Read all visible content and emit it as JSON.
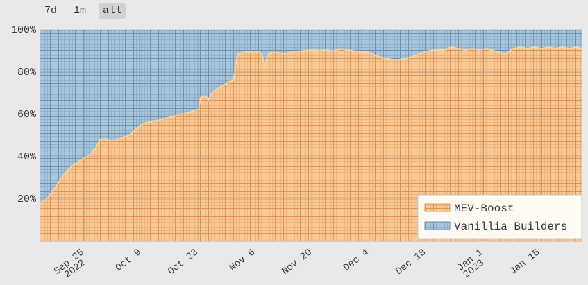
{
  "range_selector": {
    "buttons": [
      {
        "label": "7d",
        "active": false
      },
      {
        "label": "1m",
        "active": false
      },
      {
        "label": "all",
        "active": true
      }
    ],
    "active_background": "#d2d2d2"
  },
  "legend": {
    "position": "bottom-right",
    "background": "#fdfbf4",
    "border": "#cfccc0",
    "items": [
      {
        "label": "MEV-Boost",
        "swatch": "orange-hatch"
      },
      {
        "label": "Vanillia Builders",
        "swatch": "blue-hatch"
      }
    ]
  },
  "chart_data": {
    "type": "area",
    "mode": "100%-stacked",
    "title": "",
    "xlabel": "",
    "ylabel": "",
    "grid": true,
    "x_unit": "days since 2022-09-14",
    "x_range": [
      0,
      133.4
    ],
    "ylim": [
      0,
      100
    ],
    "yticks": [
      {
        "value": 100,
        "label": "100%"
      },
      {
        "value": 80,
        "label": "80%"
      },
      {
        "value": 60,
        "label": "60%"
      },
      {
        "value": 40,
        "label": "40%"
      },
      {
        "value": 20,
        "label": "20%"
      }
    ],
    "xticks": [
      {
        "day": 11,
        "label": "Sep 25",
        "sublabel": "2022"
      },
      {
        "day": 25,
        "label": "Oct 9"
      },
      {
        "day": 39,
        "label": "Oct 23"
      },
      {
        "day": 53,
        "label": "Nov 6"
      },
      {
        "day": 67,
        "label": "Nov 20"
      },
      {
        "day": 81,
        "label": "Dec 4"
      },
      {
        "day": 95,
        "label": "Dec 18"
      },
      {
        "day": 109,
        "label": "Jan 1",
        "sublabel": "2023"
      },
      {
        "day": 123,
        "label": "Jan 15"
      }
    ],
    "series": [
      {
        "name": "MEV-Boost",
        "unit": "% of slots",
        "points": [
          [
            0,
            17
          ],
          [
            0.9,
            19
          ],
          [
            2.2,
            21
          ],
          [
            3.9,
            25.5
          ],
          [
            5.6,
            30.5
          ],
          [
            7.3,
            34.5
          ],
          [
            9,
            37
          ],
          [
            10.7,
            39
          ],
          [
            12.5,
            41
          ],
          [
            13.8,
            44
          ],
          [
            14.8,
            48
          ],
          [
            15.9,
            48.5
          ],
          [
            17.2,
            47.5
          ],
          [
            18.4,
            47.5
          ],
          [
            19.6,
            48.5
          ],
          [
            21,
            49.5
          ],
          [
            22.7,
            51
          ],
          [
            24.4,
            54.5
          ],
          [
            26.1,
            56
          ],
          [
            27.8,
            56.7
          ],
          [
            29.5,
            57.3
          ],
          [
            31.2,
            58.3
          ],
          [
            32.9,
            59
          ],
          [
            34.6,
            60
          ],
          [
            36.3,
            60.6
          ],
          [
            38,
            61.8
          ],
          [
            39.1,
            62.5
          ],
          [
            39.6,
            68
          ],
          [
            40.6,
            68.8
          ],
          [
            41.5,
            67
          ],
          [
            42.3,
            70
          ],
          [
            43.5,
            72
          ],
          [
            44.9,
            73.5
          ],
          [
            46.2,
            75
          ],
          [
            47.6,
            76
          ],
          [
            48.6,
            88.3
          ],
          [
            50,
            89.3
          ],
          [
            51.7,
            89.6
          ],
          [
            53,
            89.3
          ],
          [
            53.8,
            89.8
          ],
          [
            54.6,
            88.5
          ],
          [
            55.3,
            83
          ],
          [
            56,
            87.5
          ],
          [
            56.6,
            89.2
          ],
          [
            57.7,
            89.3
          ],
          [
            59.4,
            89
          ],
          [
            60.2,
            88.7
          ],
          [
            61.9,
            89.5
          ],
          [
            63.6,
            89.8
          ],
          [
            65.3,
            90.2
          ],
          [
            67.1,
            90.5
          ],
          [
            68.8,
            90.2
          ],
          [
            70.5,
            90.5
          ],
          [
            72.2,
            90
          ],
          [
            73.9,
            91
          ],
          [
            75.6,
            90.5
          ],
          [
            77.3,
            90
          ],
          [
            79,
            89.5
          ],
          [
            80.7,
            89.5
          ],
          [
            82.4,
            87.9
          ],
          [
            84.1,
            86.9
          ],
          [
            85.8,
            86.2
          ],
          [
            87.5,
            85.6
          ],
          [
            89.2,
            86.2
          ],
          [
            90.9,
            86.9
          ],
          [
            92.6,
            87.9
          ],
          [
            94.4,
            89.5
          ],
          [
            96.1,
            90.2
          ],
          [
            97.8,
            90.5
          ],
          [
            99.5,
            90.5
          ],
          [
            101.2,
            91.8
          ],
          [
            102.9,
            91.1
          ],
          [
            104.6,
            90.5
          ],
          [
            106.3,
            91.1
          ],
          [
            108,
            90.5
          ],
          [
            109.7,
            91.1
          ],
          [
            111.4,
            90.2
          ],
          [
            112.8,
            89.5
          ],
          [
            114.5,
            88.5
          ],
          [
            116.2,
            91
          ],
          [
            118.2,
            91.8
          ],
          [
            119.9,
            91.1
          ],
          [
            121.7,
            91.8
          ],
          [
            123.4,
            91.1
          ],
          [
            125.1,
            91.8
          ],
          [
            126.8,
            91.1
          ],
          [
            128.5,
            91.8
          ],
          [
            130.2,
            91.1
          ],
          [
            131.9,
            91.8
          ],
          [
            133.4,
            91.1
          ]
        ]
      },
      {
        "name": "Vanillia Builders",
        "unit": "% of slots",
        "points_note": "complement of MEV-Boost to 100% (stacked to top)"
      }
    ],
    "colors": {
      "orange": {
        "base": "#f8c994",
        "fine": "#eeb37c",
        "heavy": "#dd9557",
        "edge": "#f3d3a2"
      },
      "blue": {
        "base": "#a9c7dc",
        "fine": "#8fb2cc",
        "heavy": "#7191af"
      },
      "gridline": "#76828e",
      "tick_text": "#3a3a3a"
    }
  }
}
